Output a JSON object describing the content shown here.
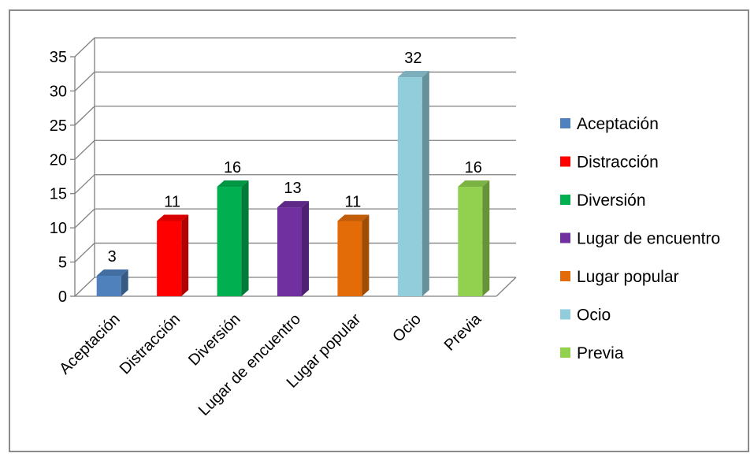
{
  "chart_data": {
    "type": "bar",
    "title": "",
    "xlabel": "",
    "ylabel": "",
    "ylim": [
      0,
      35
    ],
    "yticks": [
      0,
      5,
      10,
      15,
      20,
      25,
      30,
      35
    ],
    "grid": true,
    "legend_position": "right",
    "categories": [
      "Aceptación",
      "Distracción",
      "Diversión",
      "Lugar de encuentro",
      "Lugar popular",
      "Ocio",
      "Previa"
    ],
    "values": [
      3,
      11,
      16,
      13,
      11,
      32,
      16
    ],
    "colors": [
      "#4F81BD",
      "#FF0000",
      "#00B050",
      "#7030A0",
      "#E36C09",
      "#92CDDC",
      "#92D050"
    ],
    "legend": [
      "Aceptación",
      "Distracción",
      "Diversión",
      "Lugar de encuentro",
      "Lugar popular",
      "Ocio",
      "Previa"
    ]
  }
}
